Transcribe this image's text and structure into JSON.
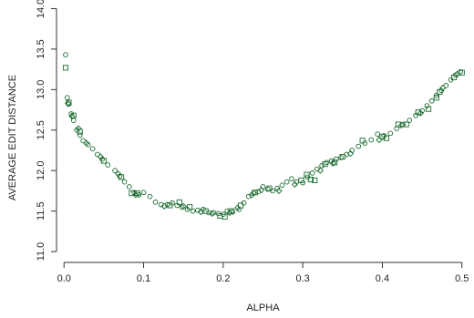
{
  "chart_data": {
    "type": "scatter",
    "title": "",
    "xlabel": "ALPHA",
    "ylabel": "AVERAGE EDIT DISTANCE",
    "xlim": [
      0.0,
      0.5
    ],
    "ylim": [
      11.0,
      14.0
    ],
    "x_ticks": [
      0.0,
      0.1,
      0.2,
      0.3,
      0.4,
      0.5
    ],
    "x_tick_labels": [
      "0.0",
      "0.1",
      "0.2",
      "0.3",
      "0.4",
      "0.5"
    ],
    "y_ticks": [
      11.0,
      11.5,
      12.0,
      12.5,
      13.0,
      13.5,
      14.0
    ],
    "y_tick_labels": [
      "11.0",
      "11.5",
      "12.0",
      "12.5",
      "13.0",
      "13.5",
      "14.0"
    ],
    "grid": false,
    "color": "#1a6b2f",
    "series": [
      {
        "marker": "circle",
        "points": [
          [
            0.002,
            13.43
          ],
          [
            0.004,
            12.9
          ],
          [
            0.006,
            12.82
          ],
          [
            0.009,
            12.7
          ],
          [
            0.012,
            12.62
          ],
          [
            0.016,
            12.5
          ],
          [
            0.02,
            12.44
          ],
          [
            0.024,
            12.37
          ],
          [
            0.03,
            12.32
          ],
          [
            0.036,
            12.27
          ],
          [
            0.042,
            12.2
          ],
          [
            0.048,
            12.14
          ],
          [
            0.055,
            12.07
          ],
          [
            0.064,
            12.0
          ],
          [
            0.07,
            11.93
          ],
          [
            0.076,
            11.86
          ],
          [
            0.082,
            11.8
          ],
          [
            0.088,
            11.73
          ],
          [
            0.094,
            11.7
          ],
          [
            0.1,
            11.73
          ],
          [
            0.108,
            11.68
          ],
          [
            0.115,
            11.61
          ],
          [
            0.122,
            11.58
          ],
          [
            0.13,
            11.58
          ],
          [
            0.136,
            11.6
          ],
          [
            0.142,
            11.57
          ],
          [
            0.148,
            11.55
          ],
          [
            0.155,
            11.52
          ],
          [
            0.162,
            11.5
          ],
          [
            0.168,
            11.51
          ],
          [
            0.175,
            11.52
          ],
          [
            0.182,
            11.48
          ],
          [
            0.188,
            11.48
          ],
          [
            0.194,
            11.47
          ],
          [
            0.2,
            11.46
          ],
          [
            0.205,
            11.5
          ],
          [
            0.212,
            11.49
          ],
          [
            0.22,
            11.52
          ],
          [
            0.226,
            11.6
          ],
          [
            0.232,
            11.68
          ],
          [
            0.238,
            11.72
          ],
          [
            0.244,
            11.74
          ],
          [
            0.25,
            11.8
          ],
          [
            0.256,
            11.77
          ],
          [
            0.262,
            11.75
          ],
          [
            0.268,
            11.78
          ],
          [
            0.274,
            11.82
          ],
          [
            0.28,
            11.86
          ],
          [
            0.286,
            11.9
          ],
          [
            0.292,
            11.86
          ],
          [
            0.3,
            11.85
          ],
          [
            0.306,
            11.92
          ],
          [
            0.312,
            11.97
          ],
          [
            0.318,
            12.02
          ],
          [
            0.324,
            12.06
          ],
          [
            0.33,
            12.1
          ],
          [
            0.336,
            12.12
          ],
          [
            0.342,
            12.14
          ],
          [
            0.348,
            12.16
          ],
          [
            0.355,
            12.2
          ],
          [
            0.362,
            12.25
          ],
          [
            0.37,
            12.3
          ],
          [
            0.378,
            12.34
          ],
          [
            0.386,
            12.38
          ],
          [
            0.394,
            12.45
          ],
          [
            0.402,
            12.43
          ],
          [
            0.41,
            12.46
          ],
          [
            0.418,
            12.52
          ],
          [
            0.426,
            12.57
          ],
          [
            0.434,
            12.62
          ],
          [
            0.442,
            12.68
          ],
          [
            0.45,
            12.74
          ],
          [
            0.456,
            12.8
          ],
          [
            0.462,
            12.86
          ],
          [
            0.468,
            12.93
          ],
          [
            0.474,
            12.99
          ],
          [
            0.48,
            13.05
          ],
          [
            0.486,
            13.12
          ],
          [
            0.492,
            13.18
          ],
          [
            0.498,
            13.22
          ]
        ]
      },
      {
        "marker": "square",
        "points": [
          [
            0.002,
            13.27
          ],
          [
            0.006,
            12.84
          ],
          [
            0.012,
            12.68
          ],
          [
            0.02,
            12.48
          ],
          [
            0.05,
            12.12
          ],
          [
            0.072,
            11.92
          ],
          [
            0.085,
            11.72
          ],
          [
            0.092,
            11.72
          ],
          [
            0.133,
            11.57
          ],
          [
            0.145,
            11.61
          ],
          [
            0.158,
            11.55
          ],
          [
            0.178,
            11.5
          ],
          [
            0.196,
            11.44
          ],
          [
            0.202,
            11.43
          ],
          [
            0.21,
            11.5
          ],
          [
            0.222,
            11.57
          ],
          [
            0.24,
            11.73
          ],
          [
            0.258,
            11.78
          ],
          [
            0.298,
            11.88
          ],
          [
            0.305,
            11.95
          ],
          [
            0.31,
            11.89
          ],
          [
            0.315,
            11.88
          ],
          [
            0.328,
            12.08
          ],
          [
            0.34,
            12.1
          ],
          [
            0.35,
            12.17
          ],
          [
            0.375,
            12.37
          ],
          [
            0.4,
            12.42
          ],
          [
            0.405,
            12.4
          ],
          [
            0.42,
            12.57
          ],
          [
            0.43,
            12.57
          ],
          [
            0.445,
            12.72
          ],
          [
            0.458,
            12.76
          ],
          [
            0.468,
            12.9
          ],
          [
            0.472,
            12.97
          ],
          [
            0.49,
            13.15
          ],
          [
            0.5,
            13.21
          ]
        ]
      },
      {
        "marker": "diamond",
        "points": [
          [
            0.005,
            12.83
          ],
          [
            0.01,
            12.67
          ],
          [
            0.018,
            12.52
          ],
          [
            0.028,
            12.34
          ],
          [
            0.046,
            12.17
          ],
          [
            0.068,
            11.96
          ],
          [
            0.09,
            11.7
          ],
          [
            0.126,
            11.56
          ],
          [
            0.15,
            11.56
          ],
          [
            0.172,
            11.49
          ],
          [
            0.186,
            11.47
          ],
          [
            0.208,
            11.48
          ],
          [
            0.218,
            11.54
          ],
          [
            0.236,
            11.7
          ],
          [
            0.248,
            11.76
          ],
          [
            0.27,
            11.75
          ],
          [
            0.29,
            11.83
          ],
          [
            0.322,
            12.0
          ],
          [
            0.338,
            12.09
          ],
          [
            0.36,
            12.21
          ],
          [
            0.396,
            12.38
          ],
          [
            0.424,
            12.56
          ],
          [
            0.448,
            12.71
          ],
          [
            0.476,
            13.02
          ],
          [
            0.494,
            13.19
          ]
        ]
      }
    ]
  }
}
